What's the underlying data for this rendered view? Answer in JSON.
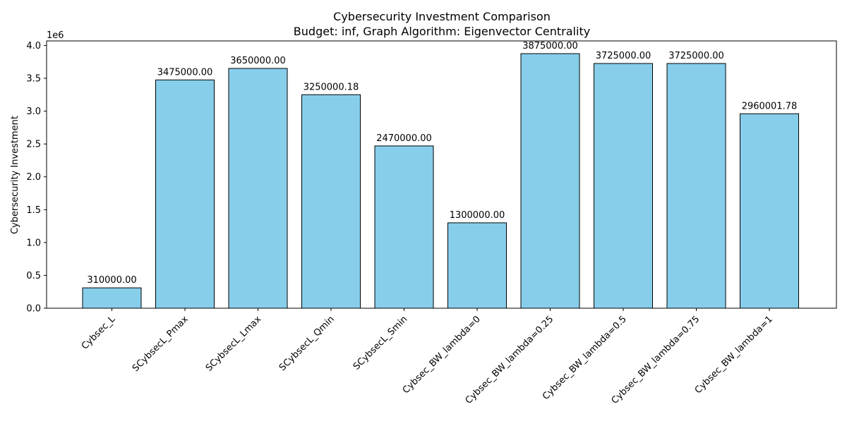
{
  "chart_data": {
    "type": "bar",
    "title": "Cybersecurity Investment Comparison",
    "subtitle": "Budget: inf, Graph Algorithm: Eigenvector Centrality",
    "xlabel": "",
    "ylabel": "Cybersecurity Investment",
    "y_scale_label": "1e6",
    "categories": [
      "Cybsec_L",
      "SCybsecL_Pmax",
      "SCybsecL_Lmax",
      "SCybsecL_Qmin",
      "SCybsecL_Smin",
      "Cybsec_BW_lambda=0",
      "Cybsec_BW_lambda=0.25",
      "Cybsec_BW_lambda=0.5",
      "Cybsec_BW_lambda=0.75",
      "Cybsec_BW_lambda=1"
    ],
    "values": [
      310000.0,
      3475000.0,
      3650000.0,
      3250000.18,
      2470000.0,
      1300000.0,
      3875000.0,
      3725000.0,
      3725000.0,
      2960001.78
    ],
    "value_labels": [
      "310000.00",
      "3475000.00",
      "3650000.00",
      "3250000.18",
      "2470000.00",
      "1300000.00",
      "3875000.00",
      "3725000.00",
      "3725000.00",
      "2960001.78"
    ],
    "ylim": [
      0,
      4068750
    ],
    "y_ticks": [
      0,
      500000,
      1000000,
      1500000,
      2000000,
      2500000,
      3000000,
      3500000,
      4000000
    ],
    "y_tick_labels": [
      "0.0",
      "0.5",
      "1.0",
      "1.5",
      "2.0",
      "2.5",
      "3.0",
      "3.5",
      "4.0"
    ],
    "bar_color": "#87ceeb",
    "bar_edge_color": "#000000",
    "grid": false,
    "legend": "none"
  }
}
